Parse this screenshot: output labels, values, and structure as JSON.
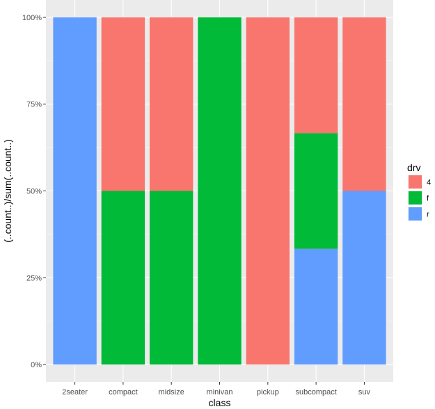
{
  "chart_data": {
    "type": "bar",
    "stacked": true,
    "position": "fill",
    "xlabel": "class",
    "ylabel": "(..count..)/sum(..count..)",
    "ylim": [
      0,
      1
    ],
    "yticks": [
      0,
      0.25,
      0.5,
      0.75,
      1
    ],
    "ytick_labels": [
      "0%",
      "25%",
      "50%",
      "75%",
      "100%"
    ],
    "categories": [
      "2seater",
      "compact",
      "midsize",
      "minivan",
      "pickup",
      "subcompact",
      "suv"
    ],
    "series": [
      {
        "name": "4",
        "color": "#F8766D",
        "values": [
          0,
          0.5,
          0.5,
          0,
          1,
          0.3333,
          0.5
        ]
      },
      {
        "name": "f",
        "color": "#00BA38",
        "values": [
          0,
          0.5,
          0.5,
          1,
          0,
          0.3333,
          0
        ]
      },
      {
        "name": "r",
        "color": "#619CFF",
        "values": [
          1,
          0,
          0,
          0,
          0,
          0.3333,
          0.5
        ]
      }
    ],
    "legend": {
      "title": "drv",
      "position": "right"
    },
    "grid": true,
    "panel_background": "#EBEBEB",
    "grid_color": "#FFFFFF"
  }
}
